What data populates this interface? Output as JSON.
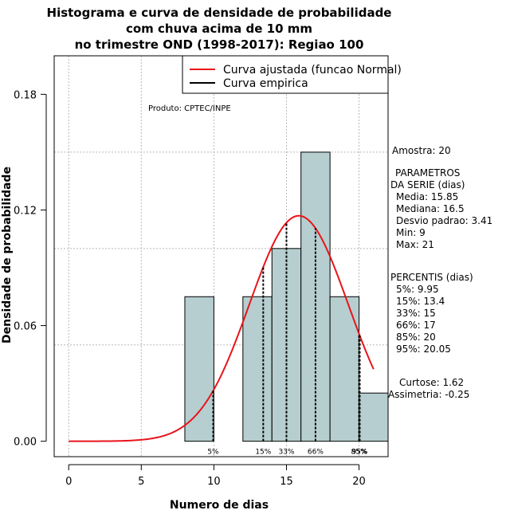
{
  "title": [
    "Histograma e curva de densidade de probabilidade",
    "com chuva acima de 10 mm",
    "no trimestre OND (1998-2017): Regiao 100"
  ],
  "producer": "Produto: CPTEC/INPE",
  "legend": [
    {
      "label": "Curva ajustada (funcao Normal)",
      "color": "#e8141b"
    },
    {
      "label": "Curva empirica",
      "color": "#000000"
    }
  ],
  "stats": {
    "amostra": "Amostra: 20",
    "parametros_title": "PARAMETROS",
    "parametros_sub": "DA SERIE (dias)",
    "media": "Media: 15.85",
    "mediana": "Mediana: 16.5",
    "desvio": "Desvio padrao: 3.41",
    "min": "Min: 9",
    "max": "Max: 21",
    "percentis_title": "PERCENTIS (dias)",
    "p5": "5%: 9.95",
    "p15": "15%: 13.4",
    "p33": "33%: 15",
    "p66": "66%: 17",
    "p85": "85%: 20",
    "p95": "95%: 20.05",
    "curtose": "Curtose: 1.62",
    "assimetria": "Assimetria: -0.25"
  },
  "chart_data": {
    "type": "bar",
    "xlabel": "Numero de dias",
    "ylabel": "Densidade de probabilidade",
    "xlim": [
      -1,
      22
    ],
    "ylim": [
      -0.008,
      0.2
    ],
    "x_ticks": [
      "0",
      "5",
      "10",
      "15",
      "20"
    ],
    "y_ticks": [
      "0.00",
      "0.06",
      "0.12",
      "0.18"
    ],
    "grid": true,
    "bar_color": "#b6cecf",
    "histogram": [
      {
        "x0": 8,
        "x1": 10,
        "density": 0.075
      },
      {
        "x0": 10,
        "x1": 12,
        "density": 0
      },
      {
        "x0": 12,
        "x1": 14,
        "density": 0.075
      },
      {
        "x0": 14,
        "x1": 16,
        "density": 0.1
      },
      {
        "x0": 16,
        "x1": 18,
        "density": 0.15
      },
      {
        "x0": 18,
        "x1": 20,
        "density": 0.075
      },
      {
        "x0": 20,
        "x1": 22,
        "density": 0.025
      }
    ],
    "normal_curve": {
      "mean": 15.85,
      "sd": 3.41,
      "x_from": 0,
      "x_to": 21,
      "color": "#e8141b"
    },
    "percentiles": [
      {
        "label": "5%",
        "x": 9.95
      },
      {
        "label": "15%",
        "x": 13.4
      },
      {
        "label": "33%",
        "x": 15
      },
      {
        "label": "66%",
        "x": 17
      },
      {
        "label": "85%",
        "x": 20
      },
      {
        "label": "95%",
        "x": 20.05
      }
    ]
  }
}
